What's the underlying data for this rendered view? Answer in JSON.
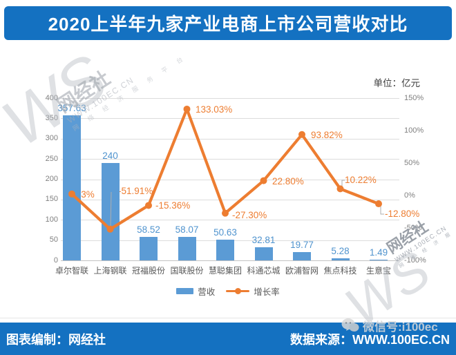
{
  "header": {
    "title": "2020上半年九家产业电商上市公司营收对比"
  },
  "chart_data": {
    "type": "bar+line combo",
    "title": "2020上半年九家产业电商上市公司营收对比",
    "unit_label": "单位：亿元",
    "categories": [
      "卓尔智联",
      "上海钢联",
      "冠福股份",
      "国联股份",
      "慧聪集团",
      "科通芯城",
      "欧浦智网",
      "焦点科技",
      "生意宝"
    ],
    "series": [
      {
        "name": "营收",
        "type": "bar",
        "axis": "left",
        "unit": "亿元",
        "color": "#5B9BD5",
        "values": [
          357.63,
          240,
          58.52,
          58.07,
          50.63,
          32.81,
          19.77,
          5.28,
          1.49
        ],
        "labels": [
          "357.63",
          "240",
          "58.52",
          "58.07",
          "50.63",
          "32.81",
          "19.77",
          "5.28",
          "1.49"
        ]
      },
      {
        "name": "增长率",
        "type": "line",
        "axis": "right",
        "unit": "%",
        "color": "#ED7D31",
        "values": [
          2.3,
          -51.91,
          -15.36,
          133.03,
          -27.3,
          22.8,
          93.82,
          10.22,
          -12.8
        ],
        "labels": [
          "2.3%",
          "-51.91%",
          "-15.36%",
          "133.03%",
          "-27.30%",
          "22.80%",
          "93.82%",
          "10.22%",
          "-12.80%"
        ]
      }
    ],
    "left_axis": {
      "min": 0,
      "max": 400,
      "tick_step": 50,
      "ticks": [
        "400",
        "350",
        "300",
        "250",
        "200",
        "150",
        "100",
        "50",
        "0"
      ]
    },
    "right_axis": {
      "min": -100,
      "max": 150,
      "tick_step": 50,
      "ticks": [
        "150%",
        "100%",
        "50%",
        "0%",
        "-50%",
        "-100%"
      ],
      "tick_values": [
        150,
        100,
        50,
        0,
        -50,
        -100
      ]
    },
    "legend": {
      "position": "bottom",
      "items": [
        "营收",
        "增长率"
      ]
    },
    "grid": "horizontal"
  },
  "watermark": {
    "logo_big": "WS",
    "logo_name": "网经社",
    "logo_url": "WWW.100EC.CN",
    "logo_tagline": "网 络 经 济 服 务 平 台",
    "wechat_label": "微信号:i100ec"
  },
  "footer": {
    "left": "图表编制：网经社",
    "right": "数据来源：WWW.100EC.CN"
  }
}
